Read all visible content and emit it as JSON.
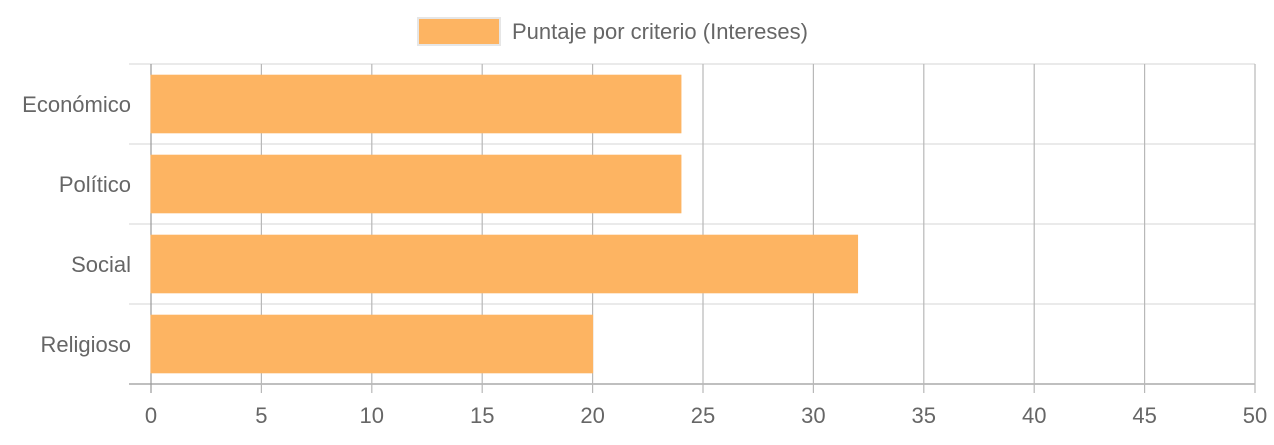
{
  "chart_data": {
    "type": "bar",
    "orientation": "horizontal",
    "categories": [
      "Económico",
      "Político",
      "Social",
      "Religioso"
    ],
    "series": [
      {
        "name": "Puntaje por criterio (Intereses)",
        "values": [
          24,
          24,
          32,
          20
        ]
      }
    ],
    "xlim": [
      0,
      50
    ],
    "xticks": [
      "0",
      "5",
      "10",
      "15",
      "20",
      "25",
      "30",
      "35",
      "40",
      "45",
      "50"
    ],
    "grid": true,
    "legend_position": "top-center",
    "colors": {
      "bar_fill": "#fdb462",
      "bar_stroke": "#fdb462",
      "grid": "#cccccc",
      "grid_x": "#999999",
      "text": "#666666"
    }
  }
}
